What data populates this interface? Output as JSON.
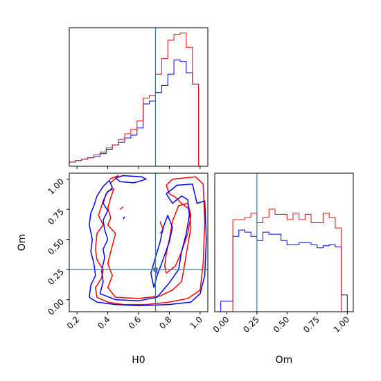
{
  "chart_data": {
    "type": "corner",
    "parameters": [
      "H0",
      "Om"
    ],
    "truths": {
      "H0": 0.71,
      "Om": 0.25
    },
    "colors": {
      "red": "#ff0000",
      "blue": "#0000ff",
      "truth": "#3a78a8"
    },
    "axes": {
      "h0": {
        "label": "H0",
        "range": [
          0.15,
          1.05
        ],
        "ticks": [
          "0.2",
          "0.4",
          "0.6",
          "0.8",
          "1.0"
        ]
      },
      "om": {
        "label": "Om",
        "range": [
          -0.1,
          1.05
        ],
        "ticks": [
          "0.00",
          "0.25",
          "0.50",
          "0.75",
          "1.00"
        ]
      }
    },
    "hist_h0": {
      "bin_edges": [
        0.15,
        0.19,
        0.23,
        0.27,
        0.31,
        0.35,
        0.39,
        0.43,
        0.47,
        0.51,
        0.55,
        0.59,
        0.63,
        0.67,
        0.71,
        0.75,
        0.79,
        0.83,
        0.87,
        0.91,
        0.95,
        0.99,
        1.03
      ],
      "red": [
        0.3,
        0.4,
        0.5,
        0.6,
        0.8,
        1.0,
        1.3,
        1.5,
        1.9,
        2.3,
        2.6,
        3.2,
        4.8,
        5.0,
        6.5,
        7.6,
        8.9,
        9.3,
        9.4,
        8.4,
        5.8,
        0.0
      ],
      "blue": [
        0.3,
        0.4,
        0.5,
        0.6,
        0.7,
        0.9,
        1.2,
        1.5,
        1.7,
        2.0,
        2.2,
        2.7,
        4.4,
        4.6,
        5.2,
        5.7,
        6.5,
        7.5,
        7.4,
        6.6,
        5.8,
        0.0
      ]
    },
    "hist_om": {
      "bin_edges": [
        -0.05,
        0.0,
        0.05,
        0.1,
        0.15,
        0.2,
        0.25,
        0.3,
        0.35,
        0.4,
        0.45,
        0.5,
        0.55,
        0.6,
        0.65,
        0.7,
        0.75,
        0.8,
        0.85,
        0.9,
        0.95,
        1.0
      ],
      "red": [
        0.0,
        0.0,
        0.88,
        0.88,
        0.9,
        0.94,
        0.85,
        0.9,
        0.98,
        0.93,
        0.93,
        0.88,
        0.94,
        0.88,
        0.93,
        0.85,
        0.85,
        0.94,
        0.9,
        0.8,
        0.0
      ],
      "blue": [
        0.1,
        0.1,
        0.72,
        0.78,
        0.76,
        0.72,
        0.68,
        0.76,
        0.74,
        0.74,
        0.68,
        0.64,
        0.64,
        0.66,
        0.66,
        0.64,
        0.61,
        0.63,
        0.64,
        0.62,
        0.16
      ]
    },
    "contours": {
      "red": [
        [
          [
            0.42,
            0.97
          ],
          [
            0.47,
            1.03
          ],
          [
            0.41,
            1.0
          ]
        ],
        [
          [
            0.78,
            0.95
          ],
          [
            0.82,
            1.0
          ],
          [
            0.97,
            1.02
          ],
          [
            1.02,
            0.96
          ],
          [
            1.03,
            0.65
          ],
          [
            1.02,
            0.3
          ],
          [
            1.0,
            0.08
          ],
          [
            0.92,
            0.01
          ],
          [
            0.8,
            -0.02
          ],
          [
            0.65,
            -0.04
          ],
          [
            0.5,
            -0.04
          ],
          [
            0.4,
            -0.02
          ],
          [
            0.33,
            0.02
          ],
          [
            0.32,
            0.1
          ],
          [
            0.36,
            0.18
          ],
          [
            0.37,
            0.25
          ],
          [
            0.33,
            0.33
          ],
          [
            0.32,
            0.42
          ],
          [
            0.33,
            0.55
          ],
          [
            0.37,
            0.62
          ],
          [
            0.34,
            0.7
          ],
          [
            0.37,
            0.82
          ],
          [
            0.4,
            0.9
          ],
          [
            0.44,
            0.92
          ],
          [
            0.42,
            0.85
          ],
          [
            0.4,
            0.76
          ],
          [
            0.42,
            0.68
          ],
          [
            0.4,
            0.62
          ],
          [
            0.45,
            0.55
          ],
          [
            0.42,
            0.4
          ],
          [
            0.4,
            0.3
          ],
          [
            0.43,
            0.2
          ],
          [
            0.4,
            0.1
          ],
          [
            0.45,
            0.02
          ],
          [
            0.6,
            0.01
          ],
          [
            0.74,
            0.03
          ],
          [
            0.82,
            0.08
          ],
          [
            0.88,
            0.15
          ],
          [
            0.9,
            0.3
          ],
          [
            0.92,
            0.45
          ],
          [
            0.94,
            0.6
          ],
          [
            0.93,
            0.75
          ],
          [
            0.88,
            0.8
          ],
          [
            0.84,
            0.85
          ],
          [
            0.8,
            0.88
          ],
          [
            0.78,
            0.95
          ]
        ],
        [
          [
            0.78,
            0.22
          ],
          [
            0.84,
            0.28
          ],
          [
            0.88,
            0.4
          ],
          [
            0.92,
            0.55
          ],
          [
            0.94,
            0.7
          ],
          [
            0.92,
            0.8
          ],
          [
            0.86,
            0.78
          ],
          [
            0.82,
            0.65
          ],
          [
            0.8,
            0.5
          ],
          [
            0.78,
            0.38
          ],
          [
            0.77,
            0.28
          ],
          [
            0.78,
            0.22
          ]
        ],
        [
          [
            0.74,
            0.65
          ],
          [
            0.76,
            0.58
          ],
          [
            0.74,
            0.55
          ]
        ],
        [
          [
            0.48,
            0.75
          ],
          [
            0.5,
            0.77
          ]
        ]
      ],
      "blue": [
        [
          [
            0.45,
            1.01
          ],
          [
            0.5,
            1.03
          ],
          [
            0.62,
            1.02
          ],
          [
            0.65,
            1.0
          ],
          [
            0.57,
            0.97
          ],
          [
            0.48,
            0.98
          ],
          [
            0.45,
            1.01
          ]
        ],
        [
          [
            0.78,
            0.88
          ],
          [
            0.85,
            0.95
          ],
          [
            0.95,
            0.96
          ],
          [
            0.98,
            0.8
          ],
          [
            1.03,
            0.82
          ],
          [
            1.04,
            0.5
          ],
          [
            1.03,
            0.2
          ],
          [
            1.0,
            0.05
          ],
          [
            0.94,
            -0.02
          ],
          [
            0.8,
            -0.04
          ],
          [
            0.6,
            -0.05
          ],
          [
            0.45,
            -0.04
          ],
          [
            0.33,
            -0.02
          ],
          [
            0.28,
            0.02
          ],
          [
            0.29,
            0.12
          ],
          [
            0.32,
            0.2
          ],
          [
            0.31,
            0.3
          ],
          [
            0.29,
            0.4
          ],
          [
            0.3,
            0.5
          ],
          [
            0.28,
            0.62
          ],
          [
            0.29,
            0.72
          ],
          [
            0.31,
            0.78
          ],
          [
            0.33,
            0.86
          ],
          [
            0.37,
            0.94
          ],
          [
            0.41,
            0.99
          ],
          [
            0.43,
            0.93
          ],
          [
            0.39,
            0.88
          ],
          [
            0.37,
            0.8
          ],
          [
            0.4,
            0.74
          ],
          [
            0.37,
            0.66
          ],
          [
            0.38,
            0.58
          ],
          [
            0.4,
            0.5
          ],
          [
            0.37,
            0.42
          ],
          [
            0.38,
            0.35
          ],
          [
            0.36,
            0.24
          ],
          [
            0.37,
            0.15
          ],
          [
            0.35,
            0.05
          ],
          [
            0.45,
            0.0
          ],
          [
            0.6,
            -0.01
          ],
          [
            0.72,
            0.02
          ],
          [
            0.76,
            0.08
          ],
          [
            0.8,
            0.14
          ],
          [
            0.86,
            0.25
          ],
          [
            0.88,
            0.4
          ],
          [
            0.91,
            0.55
          ],
          [
            0.93,
            0.7
          ],
          [
            0.92,
            0.83
          ],
          [
            0.88,
            0.86
          ],
          [
            0.82,
            0.8
          ],
          [
            0.78,
            0.88
          ]
        ],
        [
          [
            0.7,
            0.1
          ],
          [
            0.72,
            0.2
          ],
          [
            0.75,
            0.3
          ],
          [
            0.8,
            0.48
          ],
          [
            0.82,
            0.6
          ],
          [
            0.79,
            0.7
          ],
          [
            0.76,
            0.6
          ],
          [
            0.74,
            0.48
          ],
          [
            0.71,
            0.35
          ],
          [
            0.68,
            0.22
          ],
          [
            0.7,
            0.1
          ]
        ],
        [
          [
            0.5,
            0.67
          ],
          [
            0.51,
            0.69
          ]
        ],
        [
          [
            0.71,
            0.26
          ],
          [
            0.72,
            0.22
          ]
        ]
      ]
    }
  }
}
